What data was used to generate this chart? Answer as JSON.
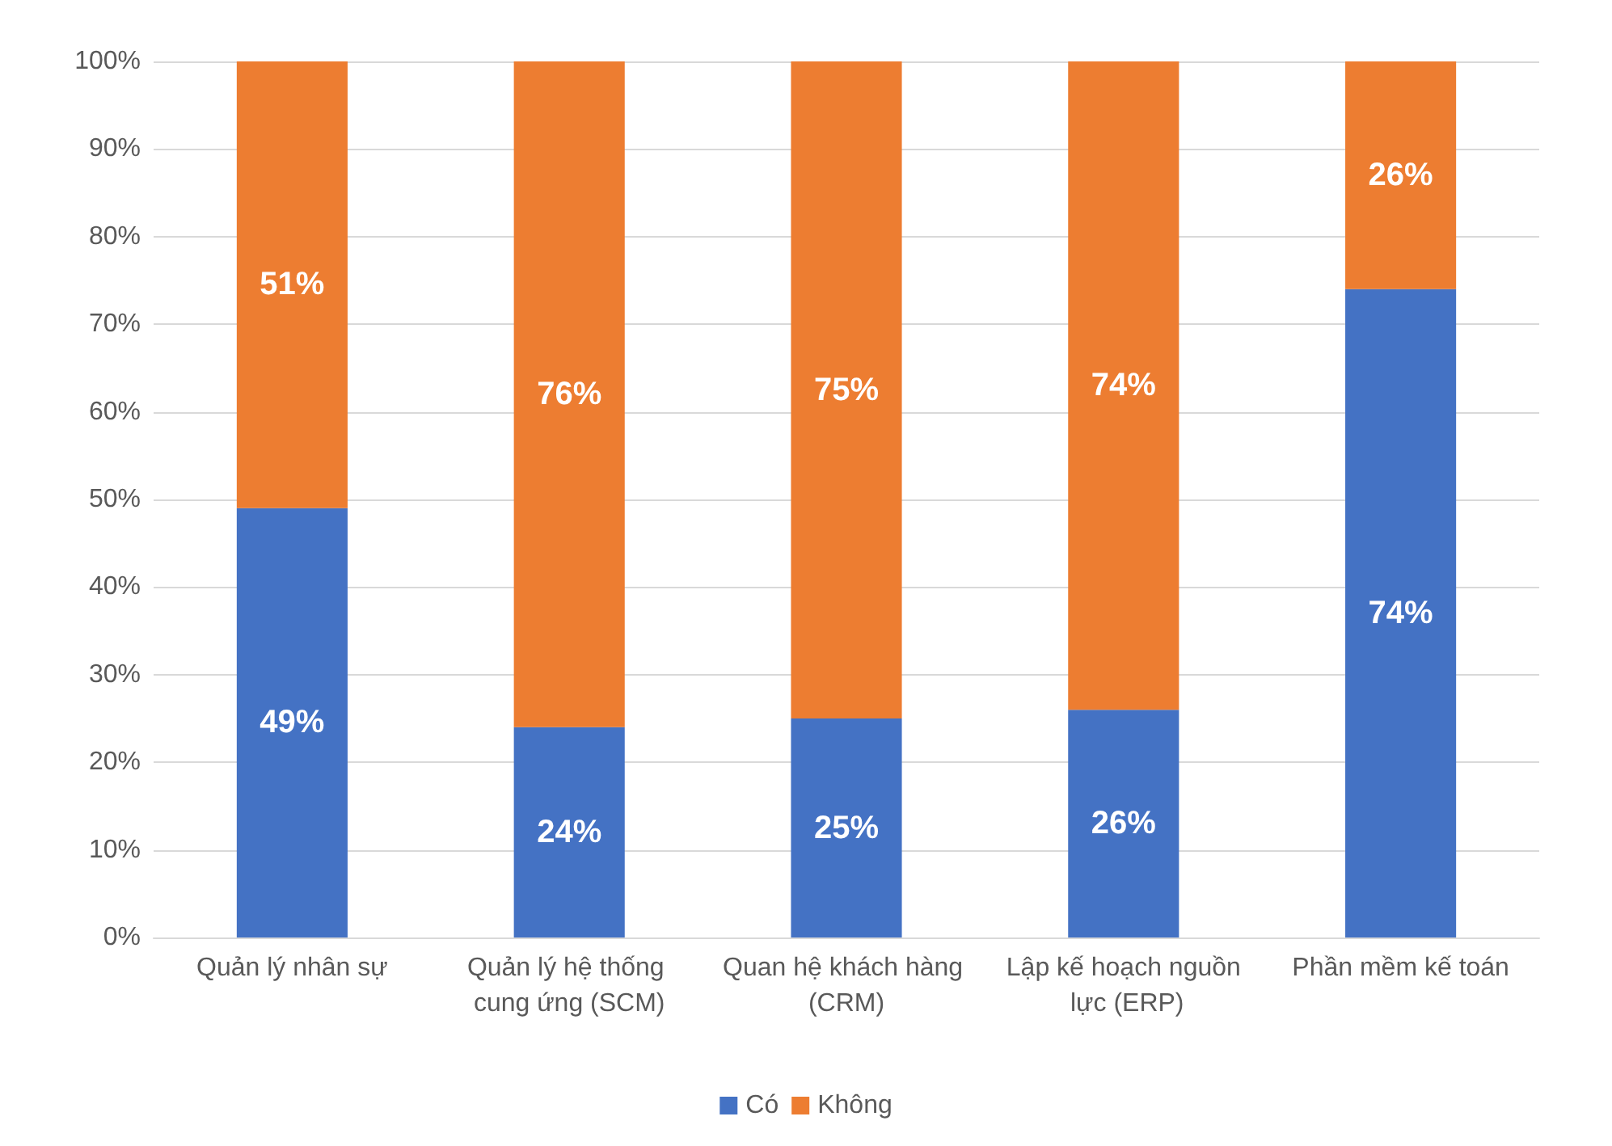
{
  "chart_data": {
    "type": "bar",
    "stacked": true,
    "categories": [
      "Quản lý nhân sự",
      "Quản lý hệ thống cung ứng (SCM)",
      "Quan hệ khách hàng (CRM)",
      "Lập kế hoạch nguồn lực (ERP)",
      "Phần mềm kế toán"
    ],
    "series": [
      {
        "name": "Có",
        "color": "#4472c4",
        "values": [
          49,
          24,
          25,
          26,
          74
        ],
        "value_labels": [
          "49%",
          "24%",
          "25%",
          "26%",
          "74%"
        ]
      },
      {
        "name": "Không",
        "color": "#ed7d31",
        "values": [
          51,
          76,
          75,
          74,
          26
        ],
        "value_labels": [
          "51%",
          "76%",
          "75%",
          "74%",
          "26%"
        ]
      }
    ],
    "ylim": [
      0,
      100
    ],
    "yticks": [
      {
        "value": 0,
        "label": "0%"
      },
      {
        "value": 10,
        "label": "10%"
      },
      {
        "value": 20,
        "label": "20%"
      },
      {
        "value": 30,
        "label": "30%"
      },
      {
        "value": 40,
        "label": "40%"
      },
      {
        "value": 50,
        "label": "50%"
      },
      {
        "value": 60,
        "label": "60%"
      },
      {
        "value": 70,
        "label": "70%"
      },
      {
        "value": 80,
        "label": "80%"
      },
      {
        "value": 90,
        "label": "90%"
      },
      {
        "value": 100,
        "label": "100%"
      }
    ],
    "grid": "y",
    "legend": "bottom"
  }
}
